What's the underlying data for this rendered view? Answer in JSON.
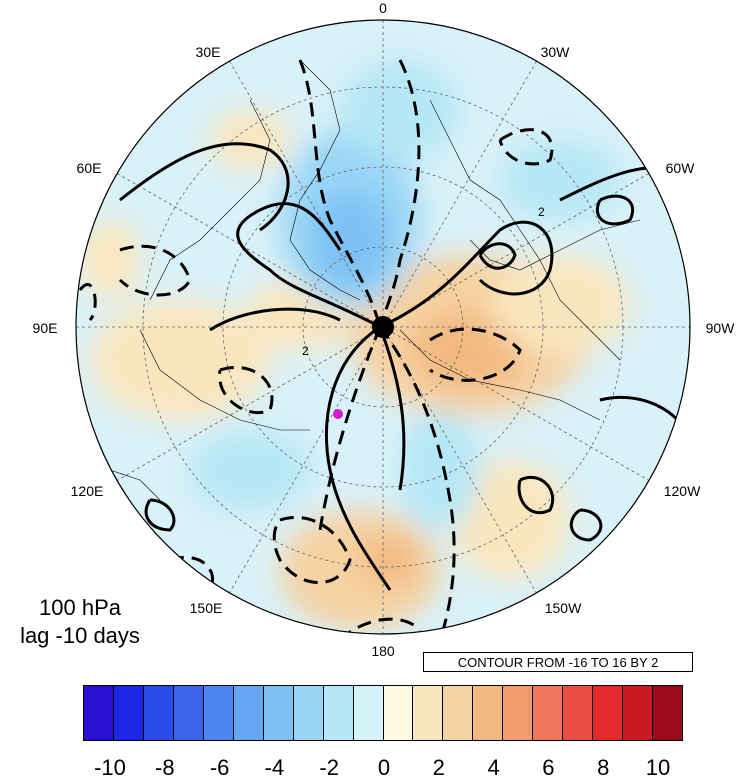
{
  "title": {
    "level": "100 hPa",
    "lag": "lag -10 days"
  },
  "contour_info": "CONTOUR FROM -16 TO 16 BY 2",
  "longitude_labels": {
    "lon_0": "0",
    "lon_30w": "30W",
    "lon_60w": "60W",
    "lon_90w": "90W",
    "lon_120w": "120W",
    "lon_150w": "150W",
    "lon_180": "180",
    "lon_150e": "150E",
    "lon_120e": "120E",
    "lon_90e": "90E",
    "lon_60e": "60E",
    "lon_30e": "30E"
  },
  "contour_labels": [
    "2",
    "2"
  ],
  "colorbar": {
    "colors": [
      "#2a10d0",
      "#1c28e8",
      "#2c4ae6",
      "#3a63ea",
      "#4a86ee",
      "#63a6f2",
      "#7dc1f4",
      "#99d6f6",
      "#b6e7f6",
      "#d4f2fa",
      "#fffbe2",
      "#fae6be",
      "#f6d2a2",
      "#f3b981",
      "#f39b6a",
      "#f0785a",
      "#ea4d44",
      "#e22a2e",
      "#c81a22",
      "#9a0a1a"
    ],
    "tick_labels": [
      "-10",
      "-8",
      "-6",
      "-4",
      "-2",
      "0",
      "2",
      "4",
      "6",
      "8",
      "10"
    ]
  },
  "colors": {
    "marker": "#d21ad2",
    "land_outline": "#000000",
    "grid": "#666666"
  }
}
